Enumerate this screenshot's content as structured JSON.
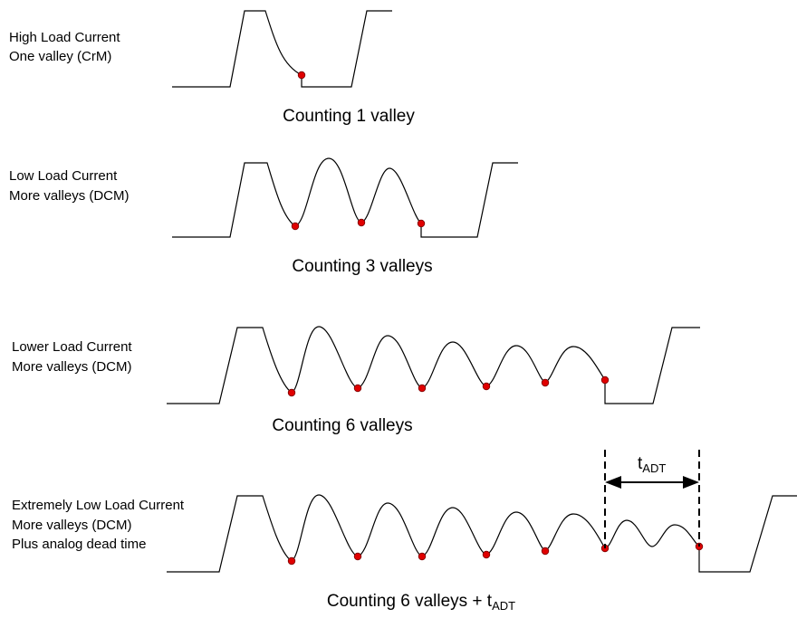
{
  "colors": {
    "background": "#ffffff",
    "stroke": "#000000",
    "valley_dot": "#e00000"
  },
  "panels": [
    {
      "label_lines": [
        "High Load Current",
        "One valley  (CrM)"
      ],
      "caption": "Counting 1 valley",
      "valley_count": 1
    },
    {
      "label_lines": [
        "Low Load Current",
        "More valleys  (DCM)"
      ],
      "caption": "Counting 3 valleys",
      "valley_count": 3
    },
    {
      "label_lines": [
        "Lower Load Current",
        "More valleys  (DCM)"
      ],
      "caption": "Counting 6 valleys",
      "valley_count": 6
    },
    {
      "label_lines": [
        "Extremely Low Load Current",
        "More valleys  (DCM)",
        "Plus analog dead time"
      ],
      "caption": "Counting 6 valleys + t",
      "caption_subscript": "ADT",
      "valley_count": 6
    }
  ],
  "tadt_label": {
    "main": "t",
    "subscript": "ADT"
  }
}
